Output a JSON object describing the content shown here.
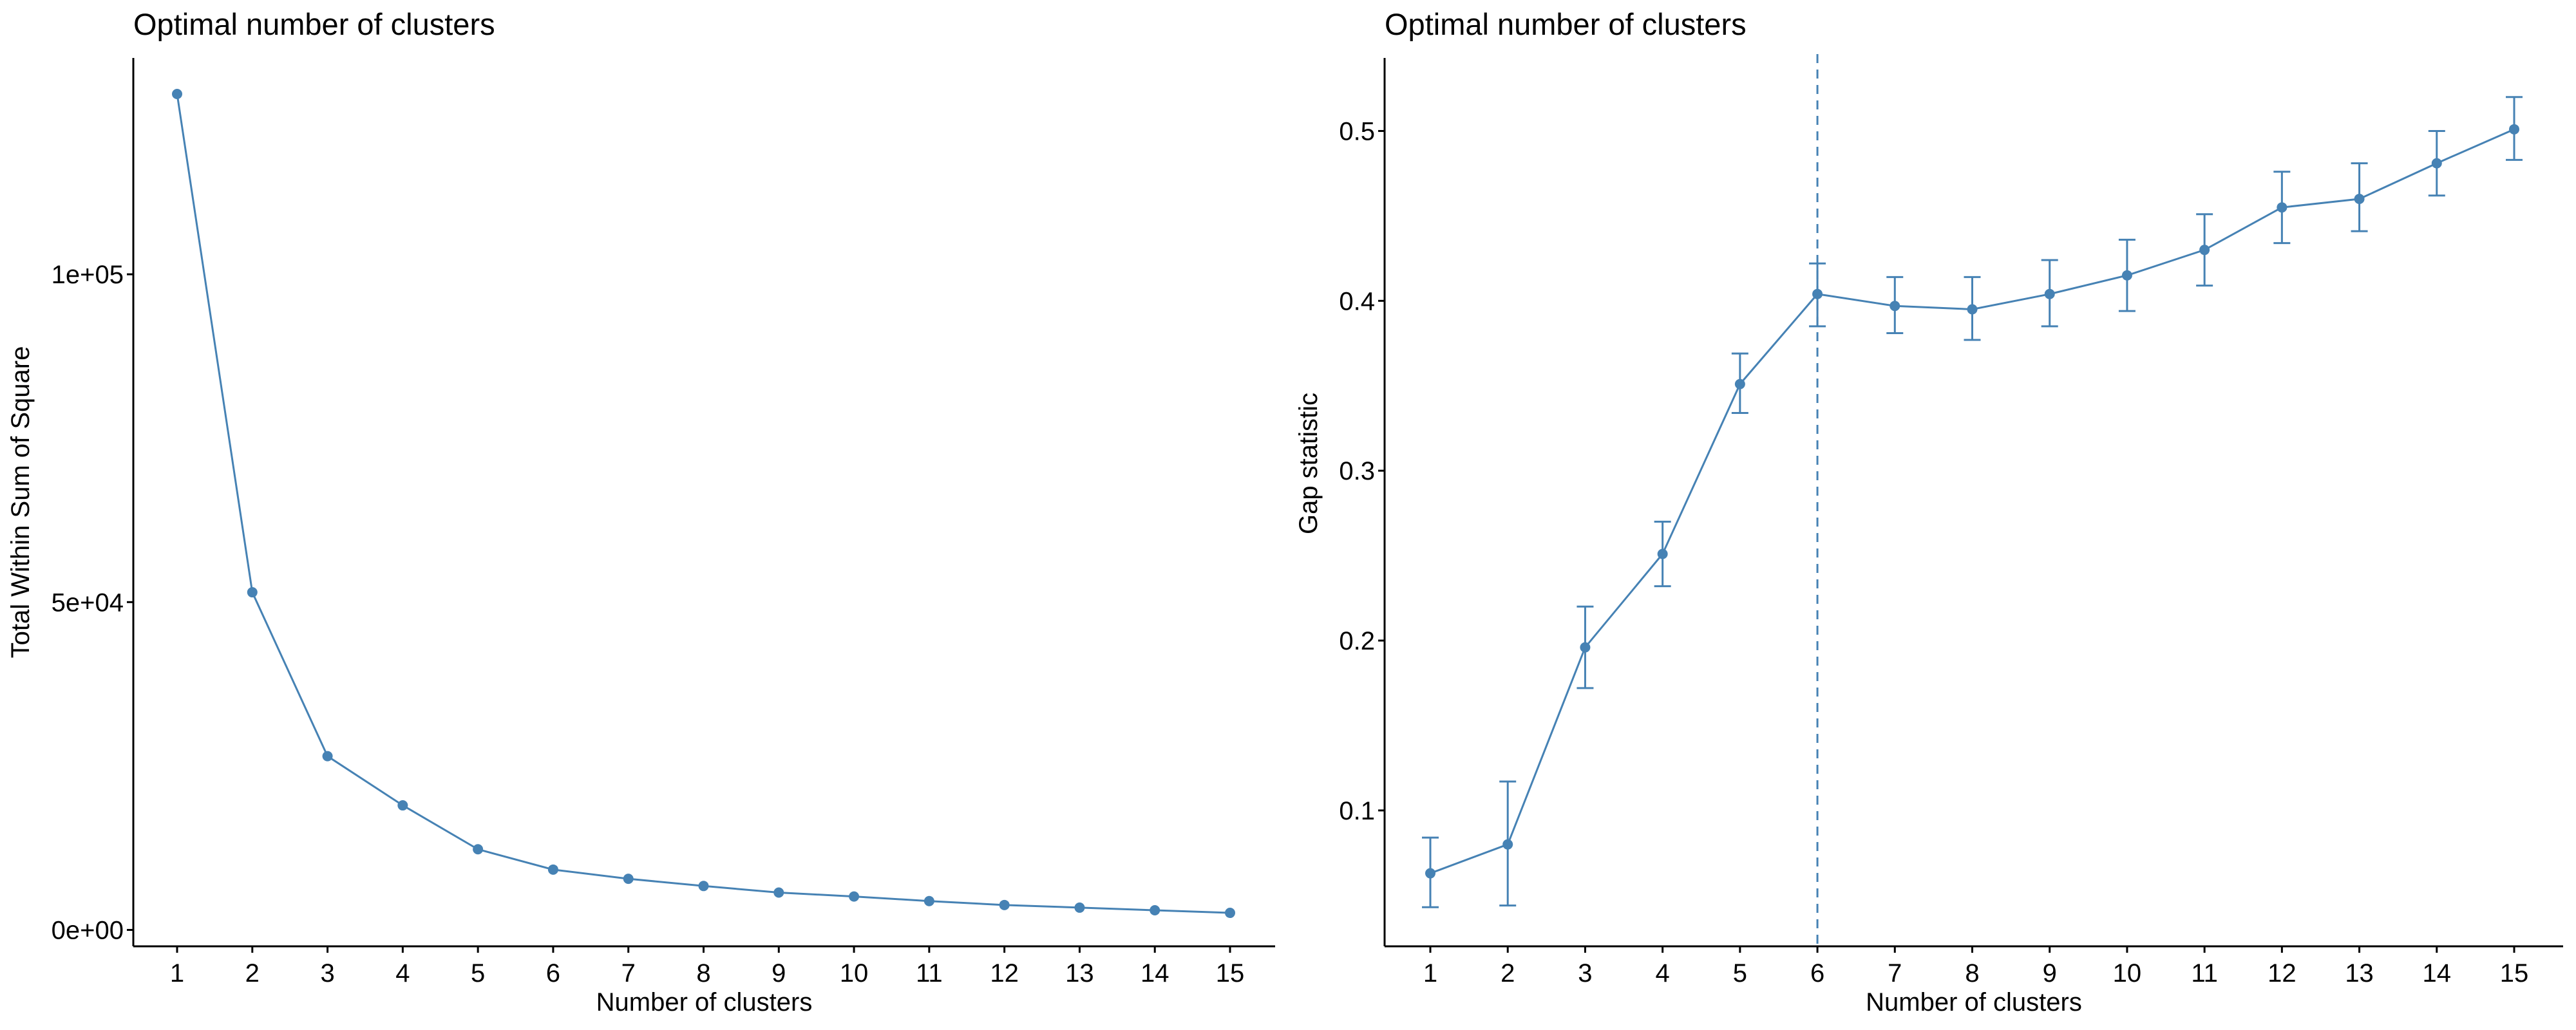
{
  "chart_data": [
    {
      "type": "line",
      "title": "Optimal number of clusters",
      "xlabel": "Number of clusters",
      "ylabel": "Total Within Sum of Square",
      "categories": [
        "1",
        "2",
        "3",
        "4",
        "5",
        "6",
        "7",
        "8",
        "9",
        "10",
        "11",
        "12",
        "13",
        "14",
        "15"
      ],
      "series": [
        {
          "values": [
            127500,
            51500,
            26500,
            19000,
            12300,
            9200,
            7800,
            6700,
            5700,
            5100,
            4400,
            3800,
            3400,
            3000,
            2600
          ]
        }
      ],
      "y_ticks": [
        0,
        50000,
        100000
      ],
      "y_tick_labels": [
        "0e+00",
        "5e+04",
        "1e+05"
      ],
      "ylim": [
        -2500,
        133000
      ],
      "grid": false,
      "color": "#4682B4"
    },
    {
      "type": "line",
      "title": "Optimal number of clusters",
      "xlabel": "Number of clusters",
      "ylabel": "Gap statistic",
      "categories": [
        "1",
        "2",
        "3",
        "4",
        "5",
        "6",
        "7",
        "8",
        "9",
        "10",
        "11",
        "12",
        "13",
        "14",
        "15"
      ],
      "series": [
        {
          "values": [
            0.063,
            0.08,
            0.196,
            0.251,
            0.351,
            0.404,
            0.397,
            0.395,
            0.404,
            0.415,
            0.43,
            0.455,
            0.46,
            0.481,
            0.501
          ],
          "error_lower": [
            0.043,
            0.044,
            0.172,
            0.232,
            0.334,
            0.385,
            0.381,
            0.377,
            0.385,
            0.394,
            0.409,
            0.434,
            0.441,
            0.462,
            0.483
          ],
          "error_upper": [
            0.084,
            0.117,
            0.22,
            0.27,
            0.369,
            0.422,
            0.414,
            0.414,
            0.424,
            0.436,
            0.451,
            0.476,
            0.481,
            0.5,
            0.52
          ]
        }
      ],
      "y_ticks": [
        0.1,
        0.2,
        0.3,
        0.4,
        0.5
      ],
      "y_tick_labels": [
        "0.1",
        "0.2",
        "0.3",
        "0.4",
        "0.5"
      ],
      "ylim": [
        0.02,
        0.543
      ],
      "vline_x": 6,
      "grid": false,
      "color": "#4682B4"
    }
  ]
}
